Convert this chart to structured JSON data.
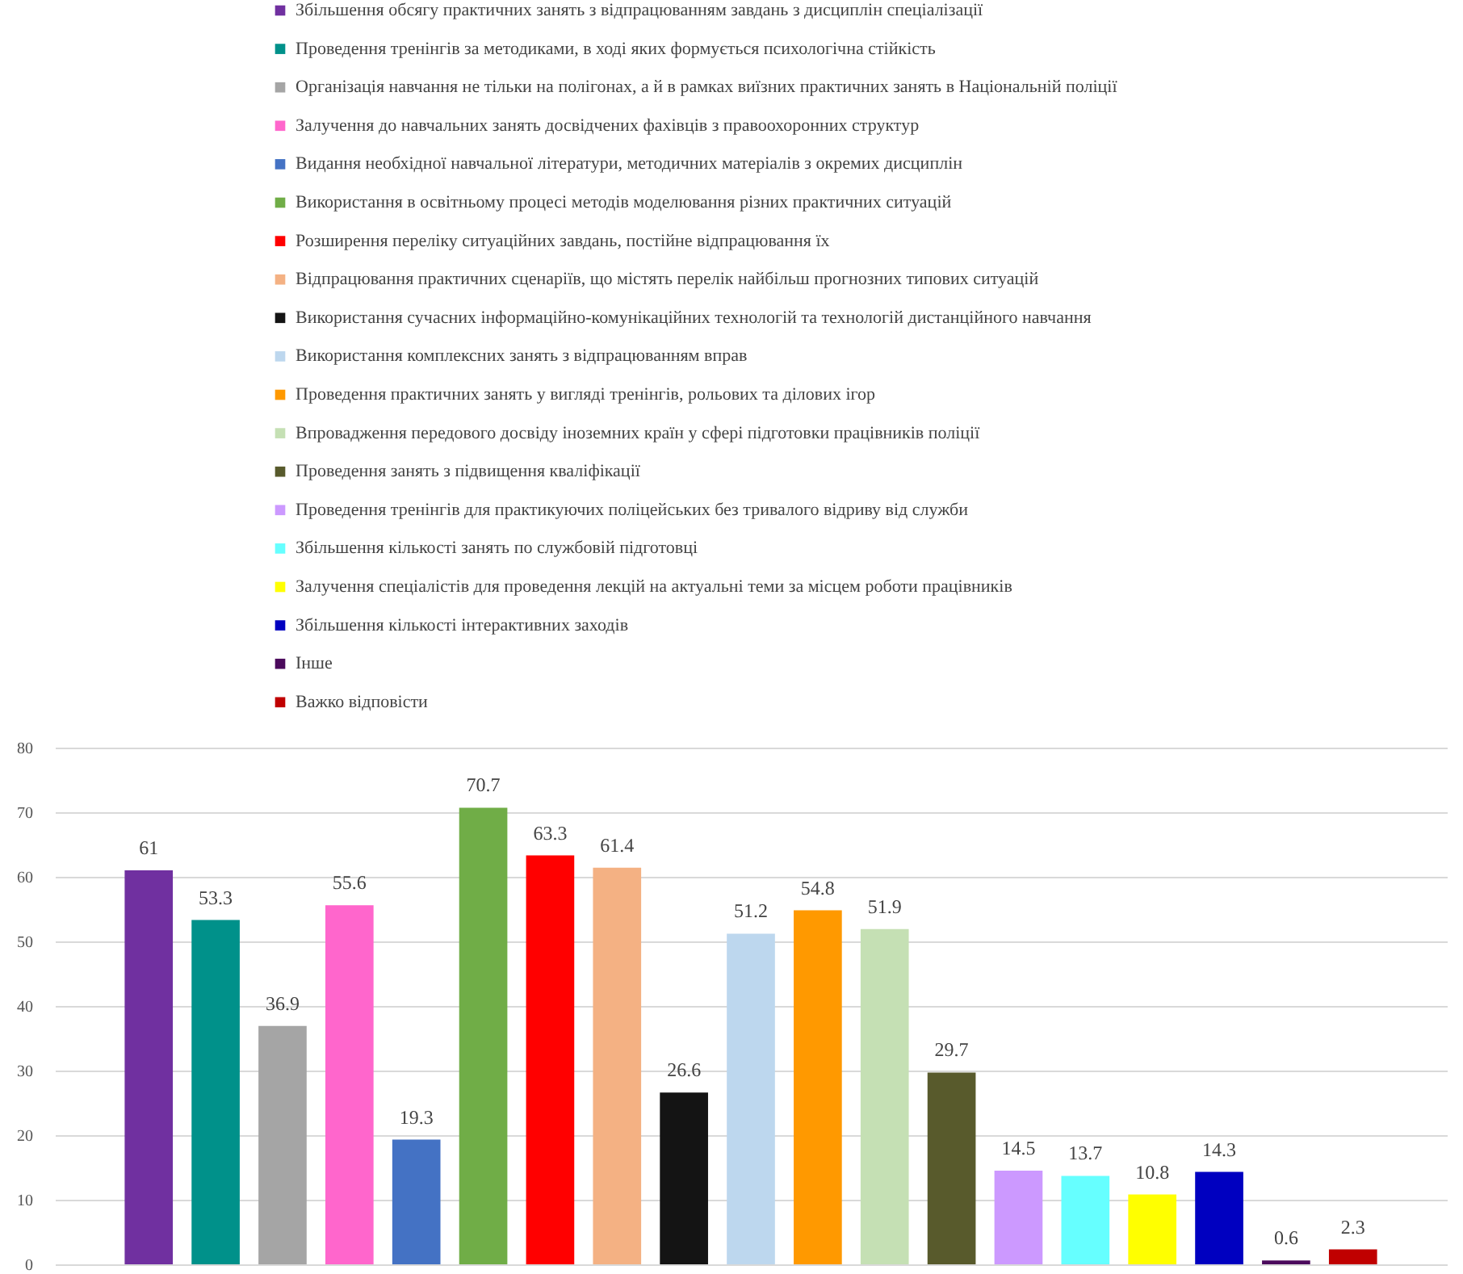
{
  "chart_data": {
    "type": "bar",
    "categories": [
      null
    ],
    "series": [
      {
        "name": "Збільшення обсягу практичних занять з відпрацюванням завдань з дисциплін спеціалізації",
        "color": "#7030a0",
        "values": [
          61
        ]
      },
      {
        "name": "Проведення тренінгів за методиками, в ході яких формується психологічна стійкість",
        "color": "#00918a",
        "values": [
          53.3
        ]
      },
      {
        "name": "Організація навчання не тільки на полігонах, а й в рамках виїзних практичних занять в Національній поліції",
        "color": "#a5a5a5",
        "values": [
          36.9
        ]
      },
      {
        "name": "Залучення до навчальних занять досвідчених фахівців з правоохоронних структур",
        "color": "#ff66cc",
        "values": [
          55.6
        ]
      },
      {
        "name": "Видання необхідної навчальної літератури, методичних матеріалів з окремих дисциплін",
        "color": "#4472c4",
        "values": [
          19.3
        ]
      },
      {
        "name": "Використання в освітньому процесі методів моделювання різних практичних ситуацій",
        "color": "#70ad47",
        "values": [
          70.7
        ]
      },
      {
        "name": "Розширення переліку ситуаційних завдань, постійне відпрацювання їх",
        "color": "#ff0000",
        "values": [
          63.3
        ]
      },
      {
        "name": "Відпрацювання практичних сценаріїв, що містять перелік найбільш прогнозних типових ситуацій",
        "color": "#f4b183",
        "values": [
          61.4
        ]
      },
      {
        "name": "Використання сучасних інформаційно-комунікаційних технологій та технологій дистанційного навчання",
        "color": "#141414",
        "values": [
          26.6
        ]
      },
      {
        "name": "Використання комплексних занять з відпрацюванням вправ",
        "color": "#bdd7ee",
        "values": [
          51.2
        ]
      },
      {
        "name": "Проведення практичних занять у вигляді тренінгів, рольових та ділових ігор",
        "color": "#ff9900",
        "values": [
          54.8
        ]
      },
      {
        "name": "Впровадження передового досвіду іноземних країн у сфері підготовки працівників поліції",
        "color": "#c5e0b4",
        "values": [
          51.9
        ]
      },
      {
        "name": "Проведення занять з підвищення кваліфікації",
        "color": "#585a2c",
        "values": [
          29.7
        ]
      },
      {
        "name": "Проведення тренінгів для практикуючих поліцейських без тривалого відриву від служби",
        "color": "#cc99ff",
        "values": [
          14.5
        ]
      },
      {
        "name": "Збільшення кількості занять по службовій підготовці",
        "color": "#66ffff",
        "values": [
          13.7
        ]
      },
      {
        "name": "Залучення спеціалістів для проведення лекцій на актуальні теми за місцем роботи працівників",
        "color": "#ffff00",
        "values": [
          10.8
        ]
      },
      {
        "name": "Збільшення кількості інтерактивних заходів",
        "color": "#0000c0",
        "values": [
          14.3
        ]
      },
      {
        "name": "Інше",
        "color": "#4b0a5c",
        "values": [
          0.6
        ]
      },
      {
        "name": "Важко відповісти",
        "color": "#c00000",
        "values": [
          2.3
        ]
      }
    ],
    "ylim": [
      0,
      80
    ],
    "yticks": [
      0,
      10,
      20,
      30,
      40,
      50,
      60,
      70,
      80
    ],
    "grid": "y",
    "legend": "top",
    "tick_labels": "y",
    "data_labels": true
  }
}
